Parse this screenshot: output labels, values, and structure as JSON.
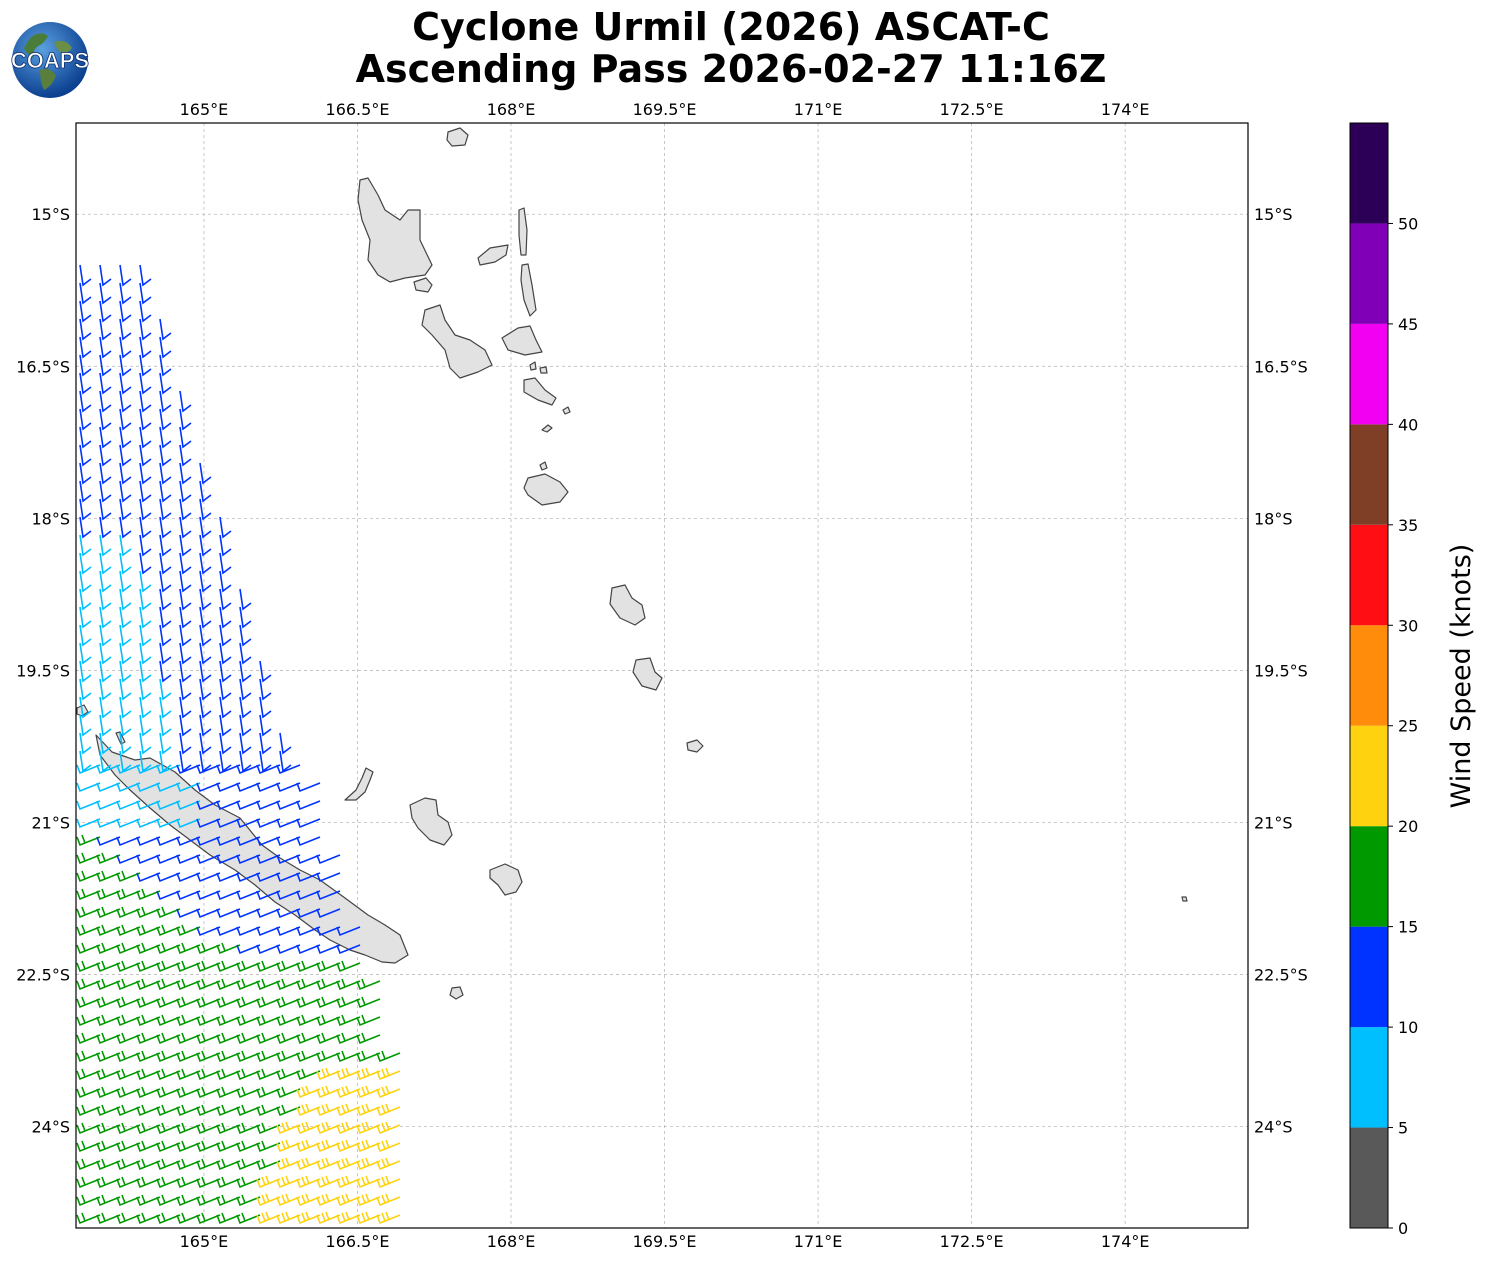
{
  "title": {
    "line1": "Cyclone Urmil (2026) ASCAT-C",
    "line2": "Ascending Pass 2026-02-27 11:16Z"
  },
  "logo": {
    "text": "COAPS",
    "icon": "globe-logo-icon"
  },
  "map": {
    "lon_ticks": [
      "165°E",
      "166.5°E",
      "168°E",
      "169.5°E",
      "171°E",
      "172.5°E",
      "174°E"
    ],
    "lat_ticks": [
      "15°S",
      "16.5°S",
      "18°S",
      "19.5°S",
      "21°S",
      "22.5°S",
      "24°S"
    ],
    "lon_range": [
      163.75,
      175.2
    ],
    "lat_range": [
      -25.0,
      -14.1
    ],
    "grid": "dashed"
  },
  "colorbar": {
    "label": "Wind Speed (knots)",
    "ticks": [
      "0",
      "5",
      "10",
      "15",
      "20",
      "25",
      "30",
      "35",
      "40",
      "45",
      "50"
    ],
    "bins": [
      {
        "range": [
          0,
          5
        ],
        "color": "#595959"
      },
      {
        "range": [
          5,
          10
        ],
        "color": "#00bfff"
      },
      {
        "range": [
          10,
          15
        ],
        "color": "#0033ff"
      },
      {
        "range": [
          15,
          20
        ],
        "color": "#009900"
      },
      {
        "range": [
          20,
          25
        ],
        "color": "#ffd20f"
      },
      {
        "range": [
          25,
          30
        ],
        "color": "#ff8c0a"
      },
      {
        "range": [
          30,
          35
        ],
        "color": "#ff0f14"
      },
      {
        "range": [
          35,
          40
        ],
        "color": "#7f3f26"
      },
      {
        "range": [
          40,
          45
        ],
        "color": "#f200f2"
      },
      {
        "range": [
          45,
          50
        ],
        "color": "#8000b8"
      },
      {
        "range": [
          50,
          55
        ],
        "color": "#2c0057"
      }
    ]
  },
  "colors": {
    "land": "#e2e2e2",
    "coast": "#444444",
    "grid": "#bbbbbb"
  }
}
